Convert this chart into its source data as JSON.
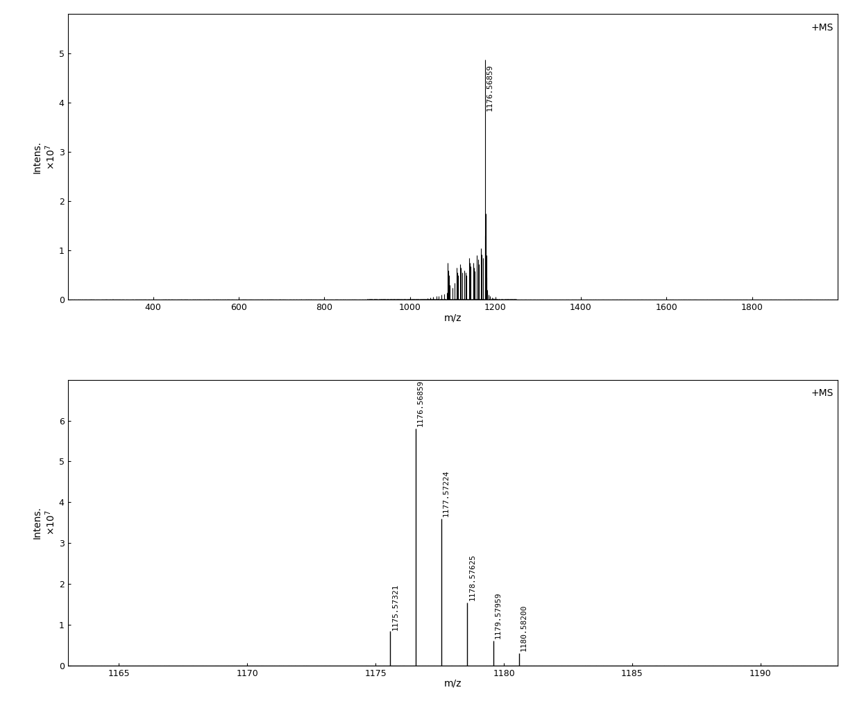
{
  "top": {
    "xlabel": "m/z",
    "label_ms": "+MS",
    "xlim": [
      200,
      2000
    ],
    "ylim": [
      0,
      58000000.0
    ],
    "yticks": [
      0,
      10000000.0,
      20000000.0,
      30000000.0,
      40000000.0,
      50000000.0
    ],
    "ytick_labels": [
      "0",
      "1",
      "2",
      "3",
      "4",
      "5"
    ],
    "xticks": [
      400,
      600,
      800,
      1000,
      1200,
      1400,
      1600,
      1800
    ],
    "noise_regions": [
      {
        "x_start": 200,
        "x_end": 900,
        "level": 80000.0
      },
      {
        "x_start": 900,
        "x_end": 1250,
        "level": 180000.0
      },
      {
        "x_start": 1250,
        "x_end": 2000,
        "level": 60000.0
      }
    ],
    "peaks": [
      {
        "mz": 1042.0,
        "intensity": 400000.0
      },
      {
        "mz": 1048.0,
        "intensity": 500000.0
      },
      {
        "mz": 1055.0,
        "intensity": 600000.0
      },
      {
        "mz": 1062.0,
        "intensity": 750000.0
      },
      {
        "mz": 1068.0,
        "intensity": 800000.0
      },
      {
        "mz": 1074.0,
        "intensity": 1000000.0
      },
      {
        "mz": 1080.0,
        "intensity": 1200000.0
      },
      {
        "mz": 1086.0,
        "intensity": 1400000.0
      },
      {
        "mz": 1088.5,
        "intensity": 7500000.0
      },
      {
        "mz": 1089.5,
        "intensity": 6000000.0
      },
      {
        "mz": 1091.0,
        "intensity": 5000000.0
      },
      {
        "mz": 1094.0,
        "intensity": 3000000.0
      },
      {
        "mz": 1100.0,
        "intensity": 2500000.0
      },
      {
        "mz": 1104.0,
        "intensity": 3500000.0
      },
      {
        "mz": 1109.0,
        "intensity": 6500000.0
      },
      {
        "mz": 1110.5,
        "intensity": 5500000.0
      },
      {
        "mz": 1113.0,
        "intensity": 5000000.0
      },
      {
        "mz": 1118.0,
        "intensity": 7200000.0
      },
      {
        "mz": 1120.0,
        "intensity": 6500000.0
      },
      {
        "mz": 1122.5,
        "intensity": 5500000.0
      },
      {
        "mz": 1127.0,
        "intensity": 6000000.0
      },
      {
        "mz": 1130.0,
        "intensity": 5500000.0
      },
      {
        "mz": 1132.5,
        "intensity": 5000000.0
      },
      {
        "mz": 1138.0,
        "intensity": 8500000.0
      },
      {
        "mz": 1140.0,
        "intensity": 7500000.0
      },
      {
        "mz": 1142.0,
        "intensity": 6800000.0
      },
      {
        "mz": 1148.0,
        "intensity": 7500000.0
      },
      {
        "mz": 1150.0,
        "intensity": 6500000.0
      },
      {
        "mz": 1152.0,
        "intensity": 5800000.0
      },
      {
        "mz": 1157.0,
        "intensity": 9000000.0
      },
      {
        "mz": 1159.0,
        "intensity": 8200000.0
      },
      {
        "mz": 1161.0,
        "intensity": 7200000.0
      },
      {
        "mz": 1166.5,
        "intensity": 10500000.0
      },
      {
        "mz": 1168.5,
        "intensity": 9200000.0
      },
      {
        "mz": 1170.5,
        "intensity": 8500000.0
      },
      {
        "mz": 1175.573,
        "intensity": 13000000.0
      },
      {
        "mz": 1176.569,
        "intensity": 48800000.0
      },
      {
        "mz": 1177.572,
        "intensity": 17500000.0
      },
      {
        "mz": 1178.576,
        "intensity": 9000000.0
      },
      {
        "mz": 1179.58,
        "intensity": 4500000.0
      },
      {
        "mz": 1180.582,
        "intensity": 2000000.0
      },
      {
        "mz": 1184.0,
        "intensity": 1000000.0
      },
      {
        "mz": 1188.0,
        "intensity": 700000.0
      },
      {
        "mz": 1192.0,
        "intensity": 500000.0
      },
      {
        "mz": 1196.0,
        "intensity": 400000.0
      },
      {
        "mz": 1200.0,
        "intensity": 300000.0
      }
    ],
    "annotation_peak": {
      "mz": 1176.569,
      "intensity": 48800000.0,
      "label": "1176.56859"
    }
  },
  "bottom": {
    "xlabel": "m/z",
    "label_ms": "+MS",
    "xlim": [
      1163,
      1193
    ],
    "ylim": [
      0,
      70000000.0
    ],
    "yticks": [
      0,
      10000000.0,
      20000000.0,
      30000000.0,
      40000000.0,
      50000000.0,
      60000000.0
    ],
    "ytick_labels": [
      "0",
      "1",
      "2",
      "3",
      "4",
      "5",
      "6"
    ],
    "xticks": [
      1165,
      1170,
      1175,
      1180,
      1185,
      1190
    ],
    "peaks": [
      {
        "mz": 1175.57321,
        "intensity": 8500000.0,
        "label": "1175.57321"
      },
      {
        "mz": 1176.56859,
        "intensity": 58000000.0,
        "label": "1176.56859"
      },
      {
        "mz": 1177.57224,
        "intensity": 36000000.0,
        "label": "1177.57224"
      },
      {
        "mz": 1178.57625,
        "intensity": 15500000.0,
        "label": "1178.57625"
      },
      {
        "mz": 1179.57959,
        "intensity": 6000000.0,
        "label": "1179.57959"
      },
      {
        "mz": 1180.582,
        "intensity": 3000000.0,
        "label": "1180.58200"
      }
    ]
  },
  "bg_color": "#ffffff",
  "line_color": "#000000",
  "font_size": 10,
  "tick_font_size": 9,
  "annotation_font_size": 8,
  "ylabel_top": "Intens.\nx10^7",
  "ylabel_bottom": "Intens.\nx10^7"
}
